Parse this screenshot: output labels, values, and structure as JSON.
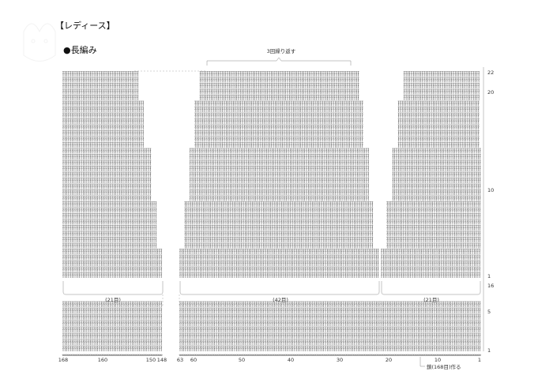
{
  "header": {
    "title": "【レディース】",
    "subtitle": "●長編み"
  },
  "diagram": {
    "repeat_label": "3回繰り返す",
    "sections": [
      {
        "label": "(21目)"
      },
      {
        "label": "(42目)"
      },
      {
        "label": "(21目)"
      }
    ],
    "row_numbers": [
      "22",
      "20",
      "10",
      "1",
      "16",
      "5",
      "1"
    ],
    "stitch_numbers": [
      "168",
      "160",
      "150",
      "148",
      "63",
      "60",
      "50",
      "40",
      "30",
      "20",
      "10",
      "1"
    ],
    "cast_on_note": "鎖(168目)作る"
  },
  "colors": {
    "stitch": "#555555",
    "guide": "#888888",
    "text": "#333333"
  }
}
